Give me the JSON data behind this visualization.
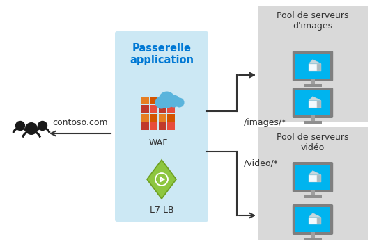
{
  "bg_color": "#ffffff",
  "gateway_box_color": "#cce8f4",
  "pool_box_color": "#d9d9d9",
  "title": "Passerelle\napplication",
  "title_color": "#0078d4",
  "waf_label": "WAF",
  "lb_label": "L7 LB",
  "contoso_label": "contoso.com",
  "images_label": "/images/*",
  "video_label": "/video/*",
  "pool_images_label": "Pool de serveurs\nd'images",
  "pool_video_label": "Pool de serveurs\nvidéo",
  "arrow_color": "#333333",
  "text_color": "#333333",
  "figsize": [
    5.34,
    3.54
  ],
  "dpi": 100,
  "waf_colors_row0": [
    "#c0392b",
    "#e74c3c",
    "#c0392b",
    "#e74c3c"
  ],
  "waf_colors_row1": [
    "#e67e22",
    "#d35400",
    "#e67e22",
    "#d35400"
  ],
  "waf_colors_row2": [
    "#c0392b",
    "#e74c3c",
    "#c0392b",
    "#e74c3c"
  ],
  "waf_colors_row3": [
    "#e67e22",
    "#d35400",
    "#e67e22",
    "#d35400"
  ],
  "cloud_color": "#5ab4dc",
  "lb_diamond_color": "#8dc63f",
  "lb_diamond_edge": "#6da020",
  "monitor_body_color": "#7f7f7f",
  "monitor_screen_color": "#00b4ef",
  "monitor_stand_color": "#9f9f9f",
  "monitor_base_color": "#8f8f8f"
}
